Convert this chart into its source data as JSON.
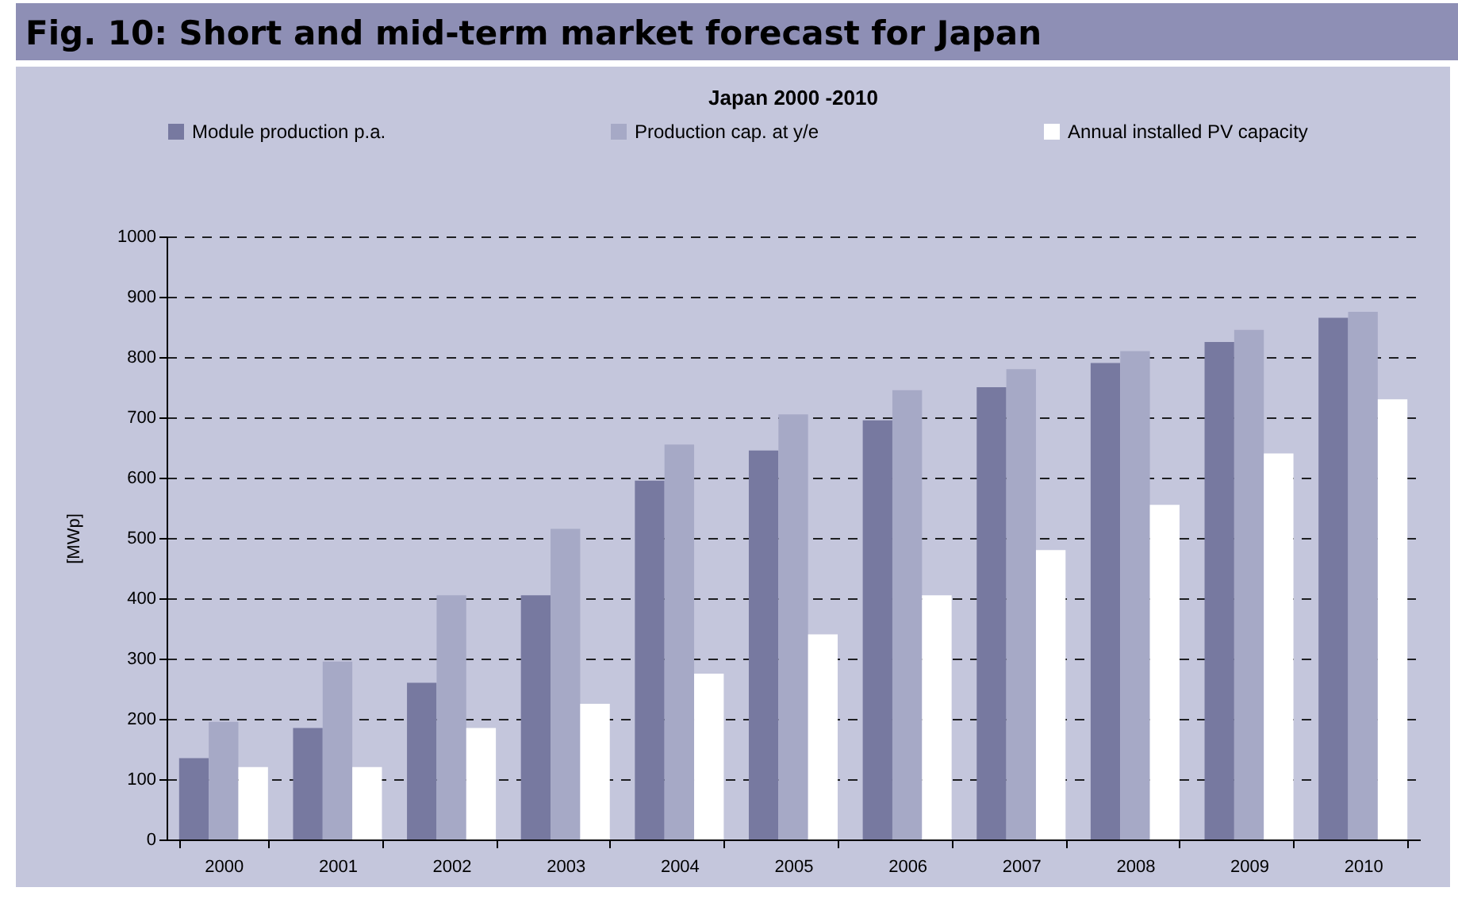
{
  "chart_data": {
    "type": "bar",
    "title": "Fig. 10: Short and mid-term market forecast for Japan",
    "subtitle": "Japan 2000 -2010",
    "ylabel": "[MWp]",
    "categories": [
      "2000",
      "2001",
      "2002",
      "2003",
      "2004",
      "2005",
      "2006",
      "2007",
      "2008",
      "2009",
      "2010"
    ],
    "series": [
      {
        "name": "Module production p.a.",
        "color": "#7779a0",
        "values": [
          135,
          185,
          260,
          405,
          595,
          645,
          695,
          750,
          790,
          825,
          865
        ]
      },
      {
        "name": "Production cap. at y/e",
        "color": "#a6a9c6",
        "values": [
          195,
          295,
          405,
          515,
          655,
          705,
          745,
          780,
          810,
          845,
          875
        ]
      },
      {
        "name": "Annual installed PV capacity",
        "color": "#ffffff",
        "values": [
          120,
          120,
          185,
          225,
          275,
          340,
          405,
          480,
          555,
          640,
          730
        ]
      }
    ],
    "ylim": [
      0,
      1000
    ],
    "yticks": [
      0,
      100,
      200,
      300,
      400,
      500,
      600,
      700,
      800,
      900,
      1000
    ],
    "grid": "y",
    "legend": "top"
  }
}
